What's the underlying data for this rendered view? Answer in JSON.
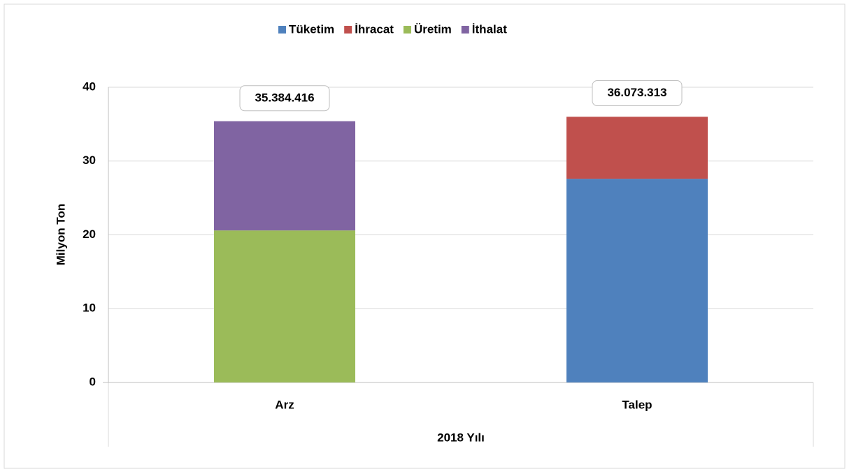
{
  "chart_data": {
    "type": "stacked_bar",
    "categories": [
      "Arz",
      "Talep"
    ],
    "series": [
      {
        "name": "Tüketim",
        "color": "#4f81bd",
        "values": [
          null,
          27.6
        ]
      },
      {
        "name": "İhracat",
        "color": "#c0504d",
        "values": [
          null,
          8.4
        ]
      },
      {
        "name": "Üretim",
        "color": "#9bbb59",
        "values": [
          20.6,
          null
        ]
      },
      {
        "name": "İthalat",
        "color": "#8064a2",
        "values": [
          14.8,
          null
        ]
      }
    ],
    "totals": [
      35.384416,
      36.073313
    ],
    "total_labels": [
      "35.384.416",
      "36.073.313"
    ],
    "ylabel": "Milyon Ton",
    "xlabel": "2018 Yılı",
    "ylim": [
      0,
      40
    ],
    "yticks": [
      0,
      10,
      20,
      30,
      40
    ],
    "grid": true,
    "legend": "top"
  }
}
